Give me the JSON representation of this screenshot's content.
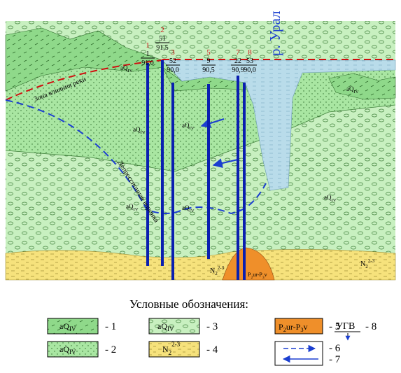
{
  "river_label": "р. Урал",
  "wells": [
    {
      "number": "1",
      "id": "1",
      "elevation": "91,0"
    },
    {
      "number": "2",
      "id": "51",
      "elevation": "91,5"
    },
    {
      "number": "3",
      "id": "52",
      "elevation": "90,0"
    },
    {
      "number": "5",
      "id": "9",
      "elevation": "90,5"
    },
    {
      "number": "7",
      "id": "22",
      "elevation": "90,9"
    },
    {
      "number": "8",
      "id": "53",
      "elevation": "90,0"
    }
  ],
  "labels": {
    "aq": {
      "base": "aQ",
      "sub": "IV"
    },
    "river_zone": "Зона влияния реки",
    "depression": "Депрессионная воронка",
    "neogene": {
      "base": "N",
      "sub": "2",
      "sup": "2-3"
    },
    "permian": [
      "P",
      "2",
      "ur-P",
      "3",
      "v"
    ]
  },
  "legend": {
    "title": "Условные обозначения:",
    "items": [
      "- 1",
      "- 2",
      "- 3",
      "- 4",
      "- 5",
      "- 6",
      "- 7",
      "- 8"
    ],
    "ugv": "УГВ"
  }
}
